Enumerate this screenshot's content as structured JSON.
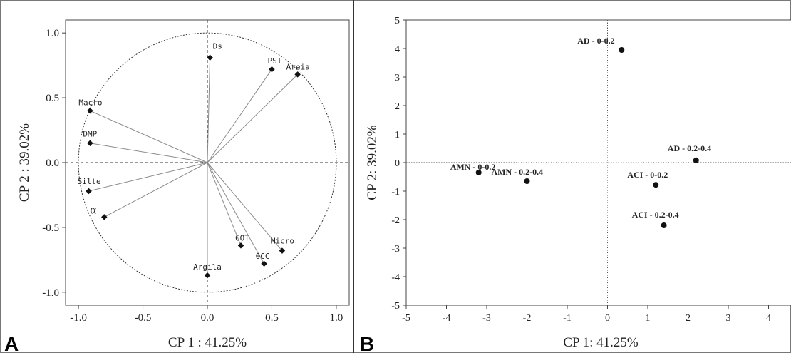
{
  "panels": [
    {
      "letter": "A"
    },
    {
      "letter": "B"
    }
  ],
  "chart_data": [
    {
      "type": "scatter",
      "panel": "A",
      "xlabel": "CP 1 : 41.25%",
      "ylabel": "CP 2 : 39.02%",
      "xlim": [
        -1.1,
        1.1
      ],
      "ylim": [
        -1.1,
        1.1
      ],
      "xticks": [
        "-1.0",
        "-0.5",
        "0.0",
        "0.5",
        "1.0"
      ],
      "yticks": [
        "1.0",
        "0.5",
        "0.0",
        "-0.5",
        "-1.0"
      ],
      "xtick_values": [
        -1.0,
        -0.5,
        0.0,
        0.5,
        1.0
      ],
      "ytick_values": [
        1.0,
        0.5,
        0.0,
        -0.5,
        -1.0
      ],
      "unit_circle": true,
      "loadings": [
        {
          "label": "Ds",
          "x": 0.02,
          "y": 0.81
        },
        {
          "label": "PST",
          "x": 0.5,
          "y": 0.72
        },
        {
          "label": "Areia",
          "x": 0.7,
          "y": 0.68
        },
        {
          "label": "Macro",
          "x": -0.91,
          "y": 0.4
        },
        {
          "label": "DMP",
          "x": -0.91,
          "y": 0.15
        },
        {
          "label": "Silte",
          "x": -0.92,
          "y": -0.22
        },
        {
          "label": "α",
          "x": -0.8,
          "y": -0.42
        },
        {
          "label": "COT",
          "x": 0.26,
          "y": -0.64
        },
        {
          "label": "Micro",
          "x": 0.58,
          "y": -0.68
        },
        {
          "label": "θCC",
          "x": 0.44,
          "y": -0.78
        },
        {
          "label": "Argila",
          "x": 0.0,
          "y": -0.87
        }
      ]
    },
    {
      "type": "scatter",
      "panel": "B",
      "xlabel": "CP 1: 41.25%",
      "ylabel": "CP 2: 39.02%",
      "xlim": [
        -5,
        5
      ],
      "ylim": [
        -5,
        5
      ],
      "xticks": [
        "-5",
        "-4",
        "-3",
        "-2",
        "-1",
        "0",
        "1",
        "2",
        "3",
        "4"
      ],
      "yticks": [
        "5",
        "4",
        "3",
        "2",
        "1",
        "0",
        "-1",
        "-2",
        "-3",
        "-4",
        "-5"
      ],
      "xtick_values": [
        -5,
        -4,
        -3,
        -2,
        -1,
        0,
        1,
        2,
        3,
        4
      ],
      "ytick_values": [
        5,
        4,
        3,
        2,
        1,
        0,
        -1,
        -2,
        -3,
        -4,
        -5
      ],
      "points": [
        {
          "label": "AD - 0-0.2",
          "x": 0.35,
          "y": 3.95
        },
        {
          "label": "AD - 0.2-0.4",
          "x": 2.2,
          "y": 0.08
        },
        {
          "label": "AMN - 0-0.2",
          "x": -3.2,
          "y": -0.35
        },
        {
          "label": "AMN - 0.2-0.4",
          "x": -2.0,
          "y": -0.65
        },
        {
          "label": "ACI - 0-0.2",
          "x": 1.2,
          "y": -0.78
        },
        {
          "label": "ACI - 0.2-0.4",
          "x": 1.4,
          "y": -2.2
        }
      ]
    }
  ]
}
